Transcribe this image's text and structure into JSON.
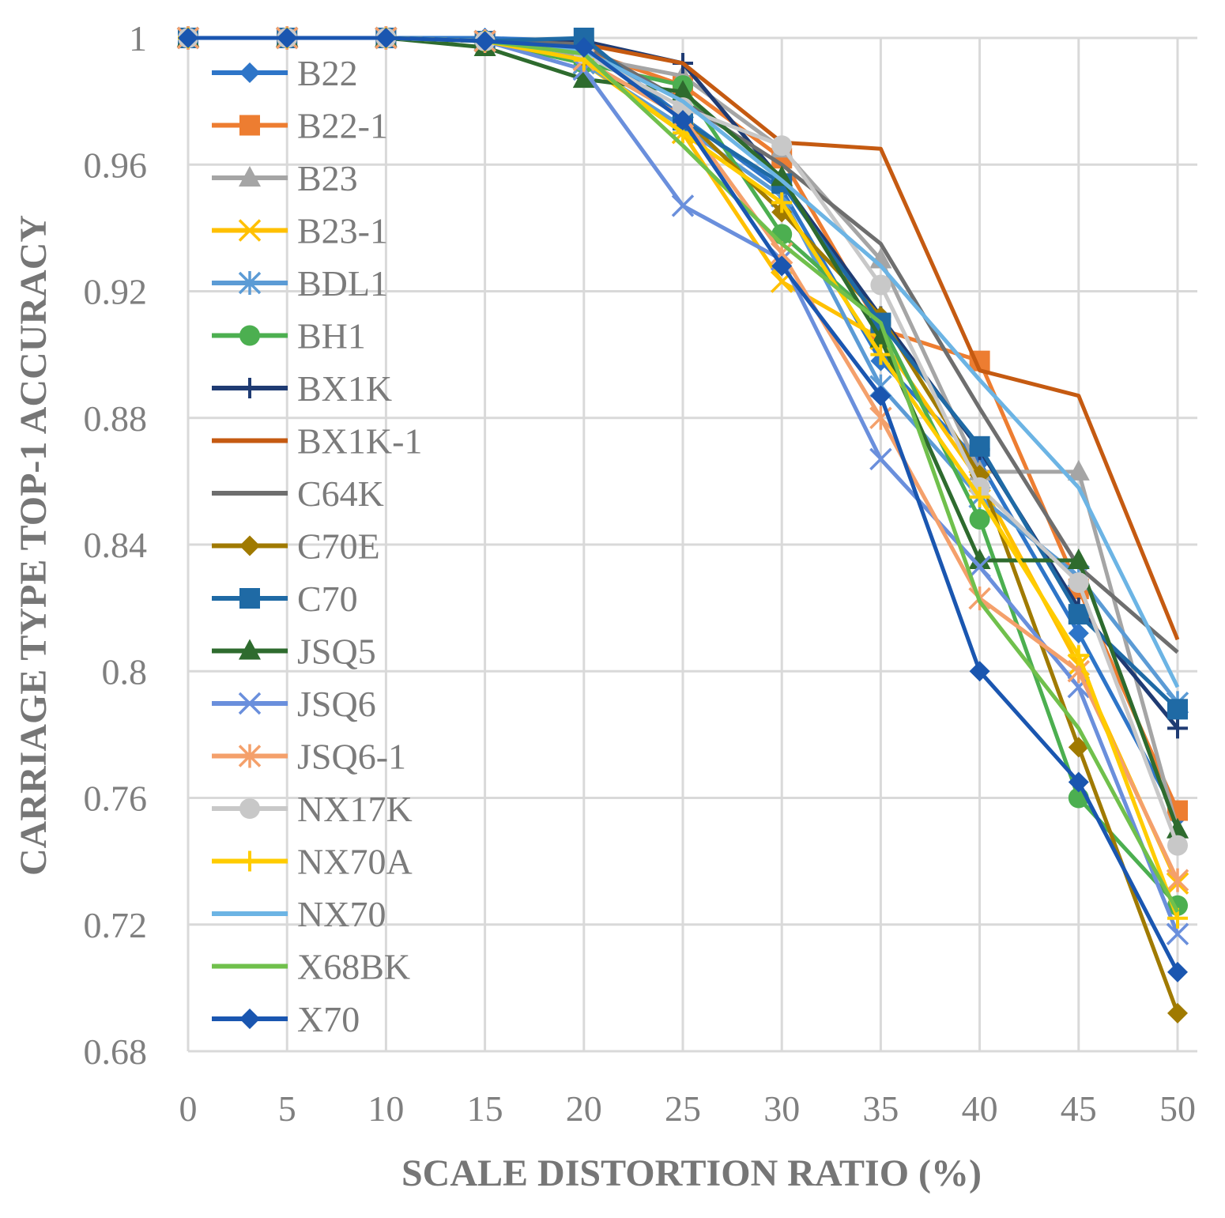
{
  "chart_data": {
    "type": "line",
    "title": "",
    "xlabel": "SCALE DISTORTION RATIO  (%)",
    "ylabel": "CARRIAGE TYPE TOP-1 ACCURACY",
    "x": [
      0,
      5,
      10,
      15,
      20,
      25,
      30,
      35,
      40,
      45,
      50
    ],
    "x_tick_labels": [
      "0",
      "5",
      "10",
      "15",
      "20",
      "25",
      "30",
      "35",
      "40",
      "45",
      "50"
    ],
    "y_tick_labels": [
      "0.68",
      "0.72",
      "0.76",
      "0.8",
      "0.84",
      "0.88",
      "0.92",
      "0.96",
      "1"
    ],
    "y_ticks": [
      0.68,
      0.72,
      0.76,
      0.8,
      0.84,
      0.88,
      0.92,
      0.96,
      1.0
    ],
    "ylim": [
      0.68,
      1.0
    ],
    "xlim": [
      0,
      50
    ],
    "grid": true,
    "legend_position": "top-left",
    "series": [
      {
        "name": "B22",
        "color": "#2e75c8",
        "marker": "diamond",
        "values": [
          1,
          1,
          1,
          1,
          0.999,
          0.975,
          0.952,
          0.898,
          0.866,
          0.812,
          0.754
        ]
      },
      {
        "name": "B22-1",
        "color": "#ed7d31",
        "marker": "square",
        "values": [
          1,
          1,
          1,
          0.999,
          0.996,
          0.985,
          0.962,
          0.908,
          0.898,
          0.826,
          0.756
        ]
      },
      {
        "name": "B23",
        "color": "#a5a5a5",
        "marker": "triangle",
        "values": [
          1,
          1,
          1,
          0.999,
          0.994,
          0.988,
          0.965,
          0.93,
          0.863,
          0.863,
          0.75
        ]
      },
      {
        "name": "B23-1",
        "color": "#ffc000",
        "marker": "x",
        "values": [
          1,
          1,
          1,
          0.999,
          0.992,
          0.97,
          0.923,
          0.905,
          0.86,
          0.802,
          0.733
        ]
      },
      {
        "name": "BDL1",
        "color": "#5b9bd5",
        "marker": "asterisk",
        "values": [
          1,
          1,
          1,
          0.999,
          0.992,
          0.972,
          0.95,
          0.89,
          0.855,
          0.83,
          0.79
        ]
      },
      {
        "name": "BH1",
        "color": "#4caf50",
        "marker": "circle",
        "values": [
          1,
          1,
          1,
          0.999,
          0.992,
          0.985,
          0.938,
          0.91,
          0.848,
          0.76,
          0.726
        ]
      },
      {
        "name": "BX1K",
        "color": "#1f3b73",
        "marker": "plus",
        "values": [
          1,
          1,
          1,
          0.999,
          0.999,
          0.992,
          0.955,
          0.912,
          0.87,
          0.82,
          0.782
        ]
      },
      {
        "name": "BX1K-1",
        "color": "#c55a11",
        "marker": "none",
        "values": [
          1,
          1,
          1,
          0.999,
          0.998,
          0.992,
          0.967,
          0.965,
          0.895,
          0.887,
          0.81
        ]
      },
      {
        "name": "C64K",
        "color": "#6e6e6e",
        "marker": "none",
        "values": [
          1,
          1,
          1,
          0.999,
          0.998,
          0.98,
          0.96,
          0.935,
          0.883,
          0.833,
          0.806
        ]
      },
      {
        "name": "C70E",
        "color": "#a07a00",
        "marker": "diamond",
        "values": [
          1,
          1,
          1,
          0.999,
          0.993,
          0.975,
          0.945,
          0.912,
          0.862,
          0.776,
          0.692
        ]
      },
      {
        "name": "C70",
        "color": "#1f6aa5",
        "marker": "square",
        "values": [
          1,
          1,
          1,
          0.999,
          1.0,
          0.974,
          0.954,
          0.91,
          0.871,
          0.818,
          0.788
        ]
      },
      {
        "name": "JSQ5",
        "color": "#2e6b2e",
        "marker": "triangle",
        "values": [
          1,
          1,
          1,
          0.997,
          0.987,
          0.983,
          0.956,
          0.905,
          0.835,
          0.835,
          0.75
        ]
      },
      {
        "name": "JSQ6",
        "color": "#6a8fdc",
        "marker": "x",
        "values": [
          1,
          1,
          1,
          0.999,
          0.99,
          0.947,
          0.93,
          0.867,
          0.833,
          0.795,
          0.717
        ]
      },
      {
        "name": "JSQ6-1",
        "color": "#f4a06b",
        "marker": "asterisk",
        "values": [
          1,
          1,
          1,
          0.999,
          0.993,
          0.975,
          0.932,
          0.88,
          0.823,
          0.8,
          0.734
        ]
      },
      {
        "name": "NX17K",
        "color": "#c8c8c8",
        "marker": "circle",
        "values": [
          1,
          1,
          1,
          0.999,
          0.995,
          0.978,
          0.966,
          0.922,
          0.858,
          0.828,
          0.745
        ]
      },
      {
        "name": "NX70A",
        "color": "#ffcc00",
        "marker": "plus",
        "values": [
          1,
          1,
          1,
          0.999,
          0.993,
          0.97,
          0.948,
          0.9,
          0.855,
          0.805,
          0.722
        ]
      },
      {
        "name": "NX70",
        "color": "#6cb4e4",
        "marker": "none",
        "values": [
          1,
          1,
          1,
          0.999,
          0.996,
          0.98,
          0.955,
          0.928,
          0.892,
          0.858,
          0.795
        ]
      },
      {
        "name": "X68BK",
        "color": "#70c04c",
        "marker": "none",
        "values": [
          1,
          1,
          1,
          0.999,
          0.995,
          0.966,
          0.935,
          0.91,
          0.822,
          0.782,
          0.724
        ]
      },
      {
        "name": "X70",
        "color": "#1a56b0",
        "marker": "diamond",
        "values": [
          1,
          1,
          1,
          0.999,
          0.997,
          0.974,
          0.928,
          0.887,
          0.8,
          0.765,
          0.705
        ]
      }
    ]
  }
}
